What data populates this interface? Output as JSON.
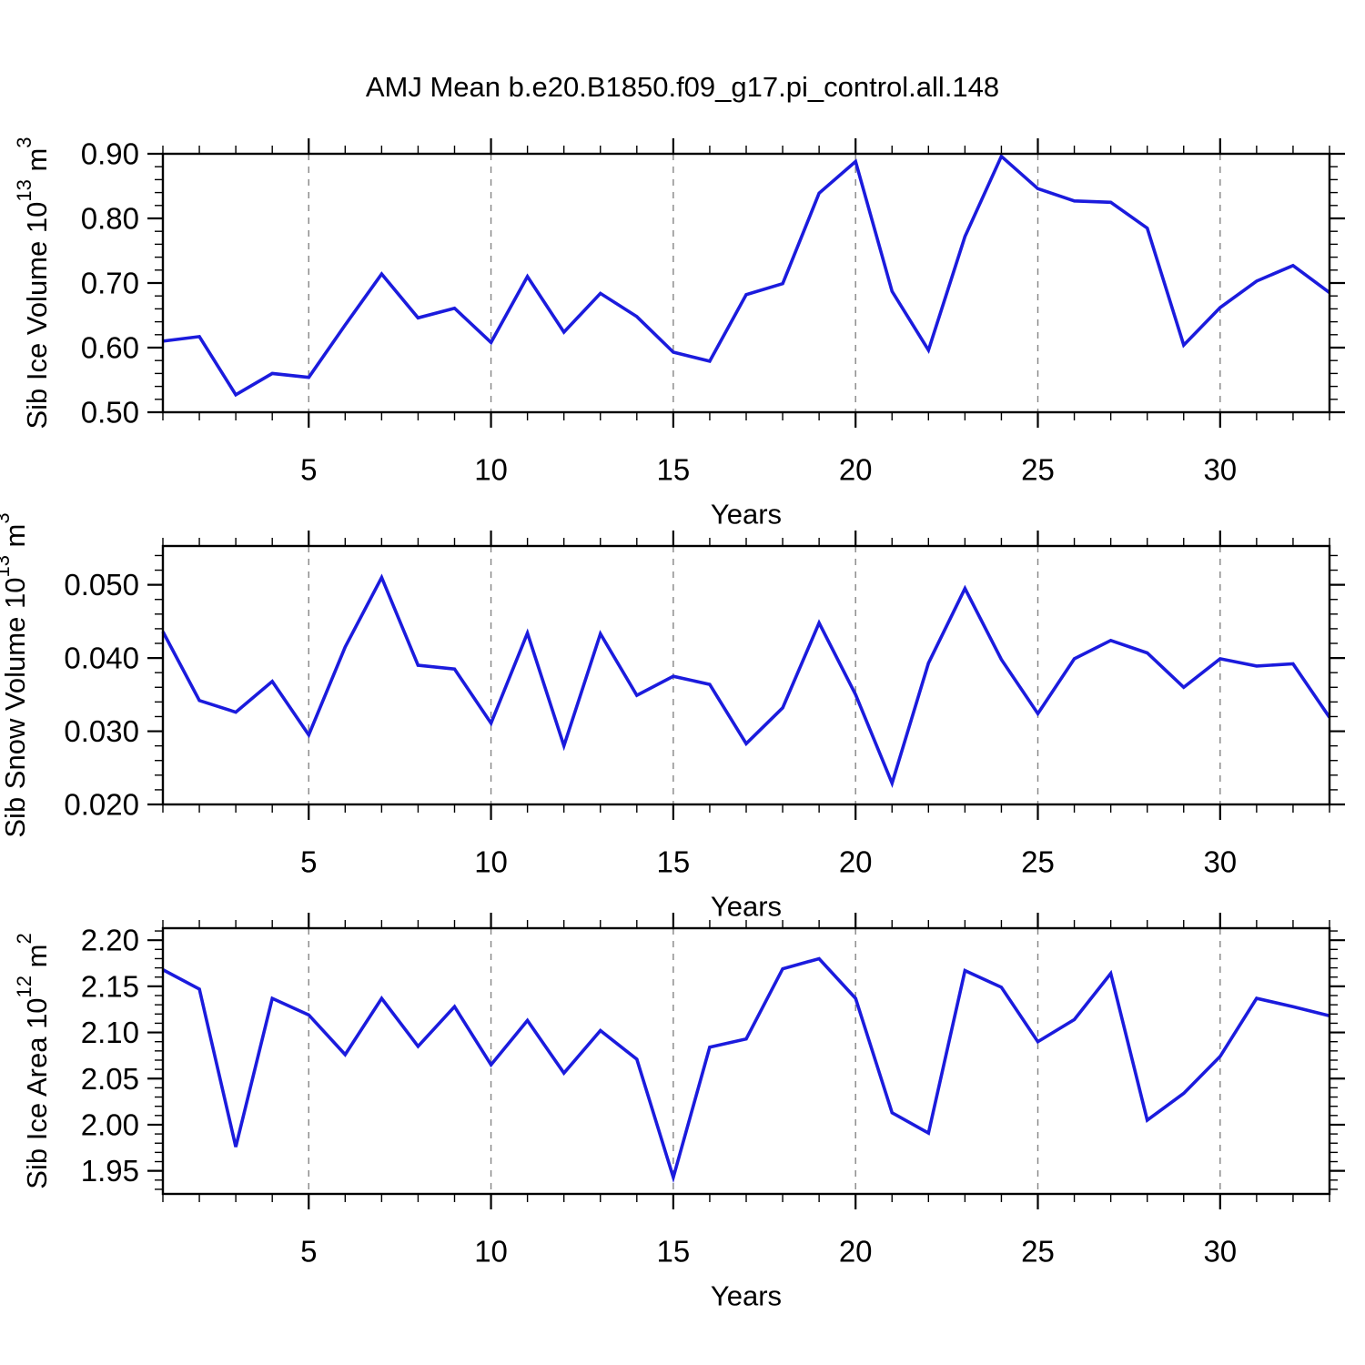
{
  "title": "AMJ Mean b.e20.B1850.f09_g17.pi_control.all.148",
  "line_color": "#1b1bdd",
  "grid_color": "#858585",
  "axis_color": "#000000",
  "chart_data": [
    {
      "type": "line",
      "name": "sib-ice-volume",
      "ylabel_parts": [
        {
          "t": "Sib Ice Volume 10",
          "sup": false
        },
        {
          "t": "13",
          "sup": true
        },
        {
          "t": " m",
          "sup": false
        },
        {
          "t": "3",
          "sup": true
        }
      ],
      "xlabel": "Years",
      "x": [
        1,
        2,
        3,
        4,
        5,
        6,
        7,
        8,
        9,
        10,
        11,
        12,
        13,
        14,
        15,
        16,
        17,
        18,
        19,
        20,
        21,
        22,
        23,
        24,
        25,
        26,
        27,
        28,
        29,
        30,
        31,
        32,
        33
      ],
      "values": [
        0.61,
        0.617,
        0.527,
        0.56,
        0.554,
        0.635,
        0.714,
        0.646,
        0.661,
        0.608,
        0.71,
        0.624,
        0.684,
        0.648,
        0.593,
        0.579,
        0.682,
        0.699,
        0.839,
        0.888,
        0.687,
        0.596,
        0.772,
        0.896,
        0.846,
        0.827,
        0.825,
        0.785,
        0.604,
        0.662,
        0.703,
        0.727,
        0.685
      ],
      "xlim": [
        1,
        33
      ],
      "ylim": [
        0.5,
        0.9
      ],
      "x_major_ticks": [
        5,
        10,
        15,
        20,
        25,
        30
      ],
      "x_major_labels": [
        "5",
        "10",
        "15",
        "20",
        "25",
        "30"
      ],
      "x_minor_step": 1,
      "y_major_ticks": [
        0.5,
        0.6,
        0.7,
        0.8,
        0.9
      ],
      "y_major_labels": [
        "0.50",
        "0.60",
        "0.70",
        "0.80",
        "0.90"
      ],
      "y_minor_step": 0.02,
      "grid": "vertical-dashed",
      "legend": "none"
    },
    {
      "type": "line",
      "name": "sib-snow-volume",
      "ylabel_parts": [
        {
          "t": "Sib Snow Volume 10",
          "sup": false
        },
        {
          "t": "13",
          "sup": true
        },
        {
          "t": " m",
          "sup": false
        },
        {
          "t": "3",
          "sup": true
        }
      ],
      "xlabel": "Years",
      "x": [
        1,
        2,
        3,
        4,
        5,
        6,
        7,
        8,
        9,
        10,
        11,
        12,
        13,
        14,
        15,
        16,
        17,
        18,
        19,
        20,
        21,
        22,
        23,
        24,
        25,
        26,
        27,
        28,
        29,
        30,
        31,
        32,
        33
      ],
      "values": [
        0.0436,
        0.0342,
        0.0326,
        0.0368,
        0.0295,
        0.0415,
        0.051,
        0.039,
        0.0385,
        0.0311,
        0.0434,
        0.028,
        0.0433,
        0.0349,
        0.0375,
        0.0364,
        0.0283,
        0.0332,
        0.0448,
        0.035,
        0.0229,
        0.0393,
        0.0495,
        0.0398,
        0.0324,
        0.0399,
        0.0424,
        0.0407,
        0.036,
        0.0399,
        0.0389,
        0.0392,
        0.0319
      ],
      "xlim": [
        1,
        33
      ],
      "ylim": [
        0.02,
        0.0553
      ],
      "x_major_ticks": [
        5,
        10,
        15,
        20,
        25,
        30
      ],
      "x_major_labels": [
        "5",
        "10",
        "15",
        "20",
        "25",
        "30"
      ],
      "x_minor_step": 1,
      "y_major_ticks": [
        0.02,
        0.03,
        0.04,
        0.05
      ],
      "y_major_labels": [
        "0.020",
        "0.030",
        "0.040",
        "0.050"
      ],
      "y_minor_step": 0.002,
      "grid": "vertical-dashed",
      "legend": "none"
    },
    {
      "type": "line",
      "name": "sib-ice-area",
      "ylabel_parts": [
        {
          "t": "Sib Ice Area 10",
          "sup": false
        },
        {
          "t": "12",
          "sup": true
        },
        {
          "t": " m",
          "sup": false
        },
        {
          "t": "2",
          "sup": true
        }
      ],
      "xlabel": "Years",
      "x": [
        1,
        2,
        3,
        4,
        5,
        6,
        7,
        8,
        9,
        10,
        11,
        12,
        13,
        14,
        15,
        16,
        17,
        18,
        19,
        20,
        21,
        22,
        23,
        24,
        25,
        26,
        27,
        28,
        29,
        30,
        31,
        32,
        33
      ],
      "values": [
        2.168,
        2.147,
        1.976,
        2.137,
        2.119,
        2.076,
        2.137,
        2.085,
        2.128,
        2.065,
        2.113,
        2.056,
        2.102,
        2.071,
        1.943,
        2.084,
        2.093,
        2.169,
        2.18,
        2.137,
        2.013,
        1.991,
        2.167,
        2.149,
        2.09,
        2.114,
        2.164,
        2.005,
        2.034,
        2.074,
        2.137,
        2.128,
        2.118
      ],
      "xlim": [
        1,
        33
      ],
      "ylim": [
        1.925,
        2.213
      ],
      "x_major_ticks": [
        5,
        10,
        15,
        20,
        25,
        30
      ],
      "x_major_labels": [
        "5",
        "10",
        "15",
        "20",
        "25",
        "30"
      ],
      "x_minor_step": 1,
      "y_major_ticks": [
        1.95,
        2.0,
        2.05,
        2.1,
        2.15,
        2.2
      ],
      "y_major_labels": [
        "1.95",
        "2.00",
        "2.05",
        "2.10",
        "2.15",
        "2.20"
      ],
      "y_minor_step": 0.01,
      "grid": "vertical-dashed",
      "legend": "none"
    }
  ]
}
